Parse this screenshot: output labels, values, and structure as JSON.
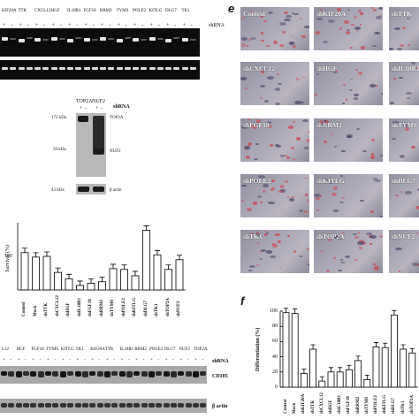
{
  "panel_a": {
    "lane_labels": [
      "KIF20A",
      "TTK",
      "CXCL12",
      "HGF",
      "IL18R1",
      "FGF18",
      "RRM2",
      "TYMS",
      "POLE2",
      "KITLG",
      "DLG7",
      "TK1"
    ],
    "signs": [
      "+",
      "-",
      "+",
      "-",
      "+",
      "-",
      "+",
      "-",
      "+",
      "-",
      "+",
      "-",
      "+",
      "-",
      "+",
      "-",
      "+",
      "-",
      "+",
      "-",
      "+",
      "-",
      "+",
      "-"
    ],
    "shrna_label": "shRNA"
  },
  "panel_western": {
    "header": [
      "TOP2A",
      "NUF2"
    ],
    "shrna_label": "shRNA",
    "signs": [
      "+",
      "-",
      "+",
      "-"
    ],
    "mw": [
      "172 kDa",
      "50 kDa",
      "43 kDa"
    ],
    "labels": [
      "TOP2A",
      "NUF2",
      "β actin"
    ]
  },
  "panel_bar_left": {
    "ylabel": "Survival (%)",
    "tick_100": "100",
    "chart_data": {
      "type": "bar",
      "categories": [
        "Control",
        "Mock",
        "shTTK",
        "shCXCL12",
        "shHGF",
        "shIL18R1",
        "shFGF18",
        "shRRM2",
        "shTYMS",
        "shPOLE2",
        "shKITLG",
        "shDLG7",
        "shTK1",
        "shTOP2A",
        "shNUF2"
      ],
      "values": [
        100,
        88,
        90,
        47,
        30,
        12,
        18,
        22,
        57,
        55,
        38,
        160,
        94,
        55,
        81
      ],
      "ylim": [
        0,
        180
      ]
    }
  },
  "panel_cd105": {
    "lane_labels": [
      "L12",
      "HGF",
      "FGF18",
      "TYMS",
      "KITLG",
      "TK1",
      "KIF20A",
      "TTK",
      "IL18R1",
      "RRM2",
      "POLE2",
      "DLG7",
      "NUF2",
      "TOP2A"
    ],
    "shrna_label": "shRNA",
    "signs": [
      "+",
      "-",
      "+",
      "-",
      "+",
      "-",
      "+",
      "-",
      "+",
      "-",
      "+",
      "-",
      "+",
      "-",
      "+",
      "-",
      "+",
      "-",
      "+",
      "-",
      "+",
      "-",
      "+",
      "-",
      "+",
      "-",
      "+",
      "-"
    ],
    "row_labels": [
      "CD105",
      "β actin"
    ]
  },
  "panel_e": {
    "letter": "e",
    "tiles": [
      "Control",
      "shKIF20A",
      "shTTK",
      "shCXCL12",
      "shHGF",
      "shIL18R1",
      "shFGF18",
      "shRRM2",
      "shTYMS",
      "shPOLE2",
      "shKITLG",
      "shDLG7",
      "shTK1",
      "shTOP2A",
      "shNUF2"
    ]
  },
  "panel_f": {
    "letter": "f",
    "ylabel": "Differentiation (%)",
    "yticks": [
      "100",
      "80",
      "60",
      "40",
      "20",
      "0"
    ],
    "chart_data": {
      "type": "bar",
      "categories": [
        "Control",
        "Mock",
        "shKIF20A",
        "shTTK",
        "shCXCL12",
        "shHGF",
        "shIL18R1",
        "shFGF18",
        "shRRM2",
        "shTYMS",
        "shPOLE2",
        "shKITLG",
        "shDLG7",
        "shTK1",
        "shTOP2A"
      ],
      "values": [
        98,
        97,
        18,
        50,
        8,
        20,
        20,
        23,
        35,
        10,
        53,
        52,
        95,
        50,
        45
      ],
      "ylim": [
        0,
        100
      ]
    }
  }
}
